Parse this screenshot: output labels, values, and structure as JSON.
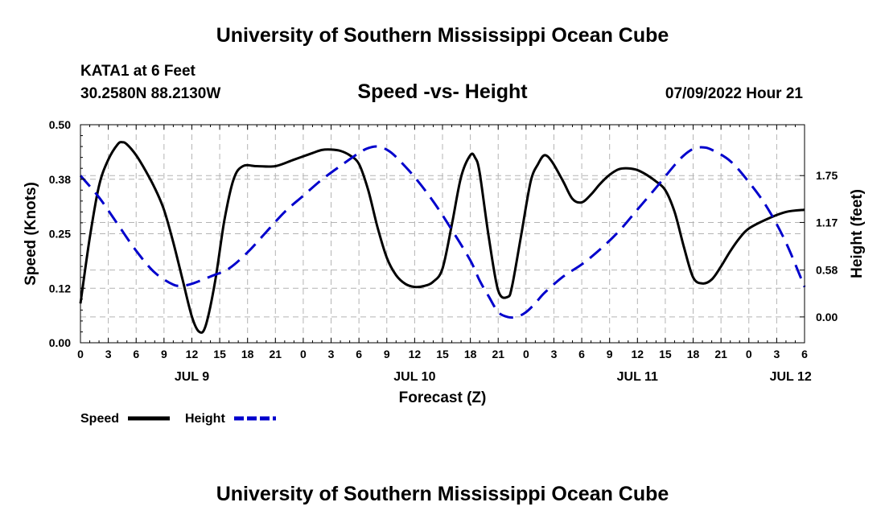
{
  "header": {
    "main_title": "University of Southern Mississippi Ocean Cube",
    "station": "KATA1 at 6 Feet",
    "coords": "30.2580N  88.2130W",
    "chart_title": "Speed -vs- Height",
    "date_stamp": "07/09/2022 Hour 21",
    "footer_title": "University of Southern Mississippi Ocean Cube"
  },
  "chart_data": {
    "type": "line",
    "title": "Speed -vs- Height",
    "xlabel": "Forecast (Z)",
    "ylabel": "Speed (Knots)",
    "y2label": "Height (feet)",
    "x_range": [
      0,
      78
    ],
    "ylim": [
      0,
      0.5
    ],
    "y2lim": [
      -0.32,
      2.38
    ],
    "x_ticks": [
      0,
      3,
      6,
      9,
      12,
      15,
      18,
      21,
      24,
      27,
      30,
      33,
      36,
      39,
      42,
      45,
      48,
      51,
      54,
      57,
      60,
      63,
      66,
      69,
      72,
      75,
      78
    ],
    "x_tick_labels": [
      "0",
      "3",
      "6",
      "9",
      "12",
      "15",
      "18",
      "21",
      "0",
      "3",
      "6",
      "9",
      "12",
      "15",
      "18",
      "21",
      "0",
      "3",
      "6",
      "9",
      "12",
      "15",
      "18",
      "21",
      "0",
      "3",
      "6"
    ],
    "day_labels": [
      {
        "x": 12,
        "label": "JUL 9"
      },
      {
        "x": 36,
        "label": "JUL 10"
      },
      {
        "x": 60,
        "label": "JUL 11"
      },
      {
        "x": 76.5,
        "label": "JUL 12"
      }
    ],
    "y_ticks": [
      0.0,
      0.125,
      0.25,
      0.375,
      0.5
    ],
    "y_tick_labels": [
      "0.00",
      "0.12",
      "0.25",
      "0.38",
      "0.50"
    ],
    "y2_ticks": [
      0.0,
      0.58,
      1.17,
      1.75
    ],
    "y2_tick_labels": [
      "0.00",
      "0.58",
      "1.17",
      "1.75"
    ],
    "grid": true,
    "series": [
      {
        "name": "Speed",
        "axis": "left",
        "color": "#000000",
        "dash": "solid",
        "points": [
          [
            0,
            0.09
          ],
          [
            1,
            0.24
          ],
          [
            2,
            0.36
          ],
          [
            3,
            0.42
          ],
          [
            4,
            0.455
          ],
          [
            4.5,
            0.46
          ],
          [
            5,
            0.455
          ],
          [
            6,
            0.43
          ],
          [
            7,
            0.395
          ],
          [
            8,
            0.355
          ],
          [
            9,
            0.305
          ],
          [
            10,
            0.23
          ],
          [
            11,
            0.145
          ],
          [
            12,
            0.06
          ],
          [
            12.8,
            0.025
          ],
          [
            13.5,
            0.04
          ],
          [
            14.5,
            0.14
          ],
          [
            15.5,
            0.28
          ],
          [
            16.5,
            0.375
          ],
          [
            17.5,
            0.405
          ],
          [
            19,
            0.405
          ],
          [
            21,
            0.405
          ],
          [
            23,
            0.42
          ],
          [
            25,
            0.435
          ],
          [
            26,
            0.442
          ],
          [
            27,
            0.443
          ],
          [
            28,
            0.44
          ],
          [
            29,
            0.43
          ],
          [
            30,
            0.41
          ],
          [
            31,
            0.35
          ],
          [
            32,
            0.265
          ],
          [
            33,
            0.195
          ],
          [
            34,
            0.155
          ],
          [
            35,
            0.135
          ],
          [
            36,
            0.128
          ],
          [
            37,
            0.13
          ],
          [
            38,
            0.14
          ],
          [
            39,
            0.17
          ],
          [
            40,
            0.27
          ],
          [
            41,
            0.38
          ],
          [
            42,
            0.43
          ],
          [
            42.5,
            0.425
          ],
          [
            43,
            0.39
          ],
          [
            44,
            0.24
          ],
          [
            45,
            0.12
          ],
          [
            46,
            0.105
          ],
          [
            46.5,
            0.13
          ],
          [
            47.5,
            0.25
          ],
          [
            48.5,
            0.37
          ],
          [
            49.3,
            0.41
          ],
          [
            50,
            0.43
          ],
          [
            50.8,
            0.415
          ],
          [
            52,
            0.37
          ],
          [
            53,
            0.33
          ],
          [
            54,
            0.322
          ],
          [
            55,
            0.34
          ],
          [
            56,
            0.365
          ],
          [
            57,
            0.385
          ],
          [
            58,
            0.398
          ],
          [
            59,
            0.4
          ],
          [
            60,
            0.396
          ],
          [
            61,
            0.385
          ],
          [
            62,
            0.37
          ],
          [
            63,
            0.35
          ],
          [
            64,
            0.3
          ],
          [
            65,
            0.22
          ],
          [
            66,
            0.15
          ],
          [
            67,
            0.136
          ],
          [
            68,
            0.145
          ],
          [
            69,
            0.175
          ],
          [
            70,
            0.21
          ],
          [
            71,
            0.24
          ],
          [
            72,
            0.262
          ],
          [
            74,
            0.284
          ],
          [
            76,
            0.3
          ],
          [
            78,
            0.305
          ]
        ]
      },
      {
        "name": "Height",
        "axis": "right",
        "color": "#0000cc",
        "dash": "dashed",
        "points": [
          [
            0,
            1.75
          ],
          [
            2,
            1.48
          ],
          [
            4,
            1.15
          ],
          [
            6,
            0.82
          ],
          [
            8,
            0.55
          ],
          [
            10,
            0.4
          ],
          [
            11,
            0.39
          ],
          [
            12,
            0.41
          ],
          [
            14,
            0.5
          ],
          [
            16,
            0.6
          ],
          [
            18,
            0.8
          ],
          [
            20,
            1.05
          ],
          [
            22,
            1.3
          ],
          [
            24,
            1.5
          ],
          [
            26,
            1.7
          ],
          [
            28,
            1.87
          ],
          [
            30,
            2.03
          ],
          [
            31,
            2.09
          ],
          [
            32,
            2.11
          ],
          [
            33,
            2.07
          ],
          [
            34,
            1.98
          ],
          [
            36,
            1.73
          ],
          [
            38,
            1.43
          ],
          [
            40,
            1.08
          ],
          [
            42,
            0.7
          ],
          [
            43,
            0.45
          ],
          [
            44,
            0.25
          ],
          [
            45,
            0.06
          ],
          [
            46,
            0.0
          ],
          [
            47,
            0.0
          ],
          [
            48,
            0.06
          ],
          [
            49,
            0.17
          ],
          [
            50,
            0.3
          ],
          [
            52,
            0.5
          ],
          [
            54,
            0.65
          ],
          [
            56,
            0.84
          ],
          [
            58,
            1.06
          ],
          [
            60,
            1.33
          ],
          [
            62,
            1.6
          ],
          [
            64,
            1.88
          ],
          [
            65,
            2.0
          ],
          [
            66,
            2.08
          ],
          [
            67,
            2.1
          ],
          [
            68,
            2.07
          ],
          [
            70,
            1.93
          ],
          [
            72,
            1.67
          ],
          [
            74,
            1.35
          ],
          [
            76,
            0.92
          ],
          [
            78,
            0.37
          ]
        ]
      }
    ],
    "legend": {
      "placement": "bottom-left",
      "entries": [
        {
          "label": "Speed",
          "color": "#000000",
          "dash": "solid"
        },
        {
          "label": "Height",
          "color": "#0000cc",
          "dash": "dashed"
        }
      ]
    }
  }
}
